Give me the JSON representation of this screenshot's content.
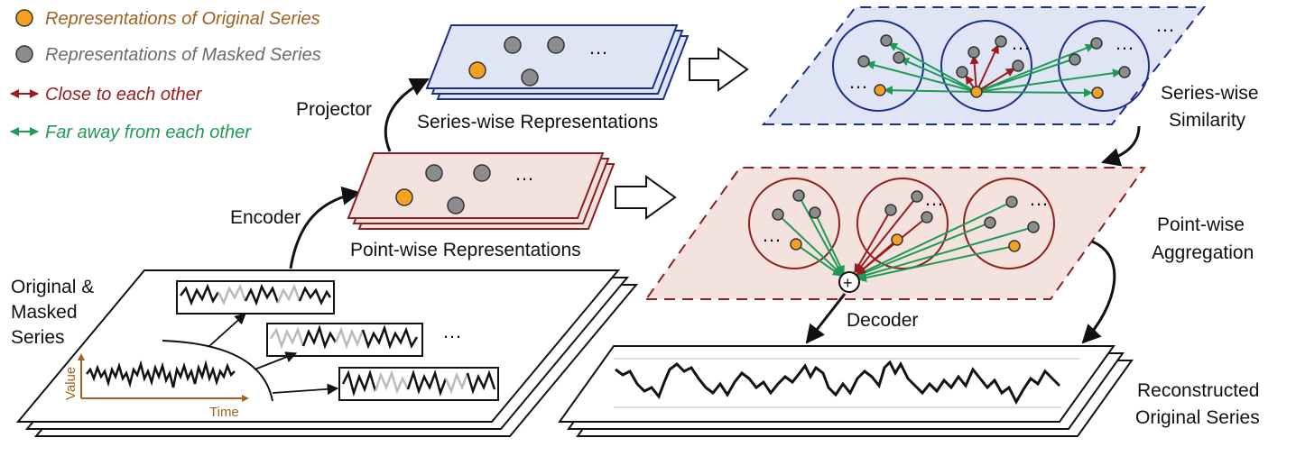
{
  "colors": {
    "original": "#f5a020",
    "masked": "#8c8c8c",
    "close": "#9b1c1c",
    "far": "#1f9a56",
    "legend_original_text": "#a0621f",
    "legend_masked_text": "#6b6b6b",
    "series_plane_fill": "#dfe5f5",
    "series_plane_border": "#1b2f8c",
    "point_plane_fill": "#f4e2de",
    "point_plane_border": "#8c1f1f"
  },
  "legend": {
    "original": "Representations of Original Series",
    "masked": "Representations of Masked Series",
    "close": "Close to each other",
    "far": "Far away from each other"
  },
  "labels": {
    "original_masked": [
      "Original &",
      "Masked",
      "Series"
    ],
    "encoder": "Encoder",
    "projector": "Projector",
    "point_wise_repr": "Point-wise Representations",
    "series_wise_repr": "Series-wise Representations",
    "series_wise_similarity": [
      "Series-wise",
      "Similarity"
    ],
    "point_wise_aggregation": [
      "Point-wise",
      "Aggregation"
    ],
    "decoder": "Decoder",
    "reconstructed": [
      "Reconstructed",
      "Original Series"
    ],
    "ellipsis": "…",
    "value_axis": "Value",
    "time_axis": "Time",
    "plus": "+"
  }
}
